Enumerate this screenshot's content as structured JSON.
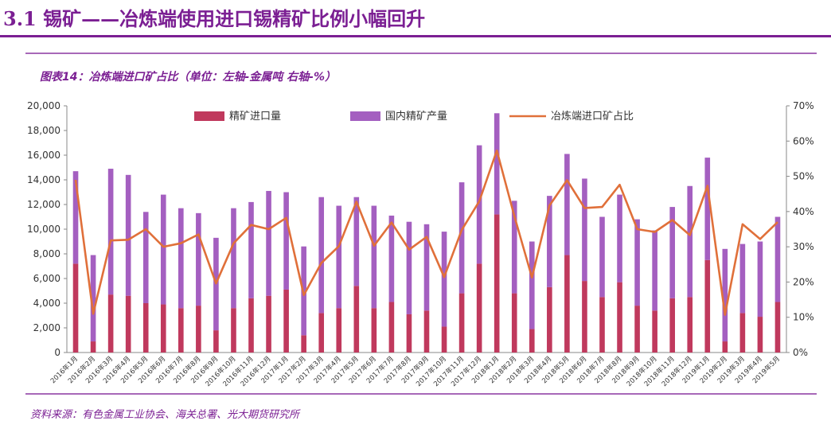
{
  "header": {
    "title": "3.1 锡矿——冶炼端使用进口锡精矿比例小幅回升",
    "figure_title": "图表14：冶炼端进口矿占比（单位：左轴-金属吨 右轴-%）"
  },
  "footer": {
    "source": "资料来源：有色金属工业协会、海关总署、光大期货研究所"
  },
  "colors": {
    "accent": "#7b1f93",
    "import": "#c0395d",
    "domestic": "#a45fc0",
    "ratio": "#e0703a"
  },
  "chart_data": {
    "type": "bar",
    "stacked": true,
    "categories": [
      "2016年1月",
      "2016年2月",
      "2016年3月",
      "2016年4月",
      "2016年5月",
      "2016年6月",
      "2016年7月",
      "2016年8月",
      "2016年9月",
      "2016年10月",
      "2016年11月",
      "2016年12月",
      "2017年1月",
      "2017年2月",
      "2017年3月",
      "2017年4月",
      "2017年5月",
      "2017年6月",
      "2017年7月",
      "2017年8月",
      "2017年9月",
      "2017年10月",
      "2017年11月",
      "2017年12月",
      "2018年1月",
      "2018年2月",
      "2018年3月",
      "2018年4月",
      "2018年5月",
      "2018年6月",
      "2018年7月",
      "2018年8月",
      "2018年9月",
      "2018年10月",
      "2018年11月",
      "2018年12月",
      "2019年1月",
      "2019年2月",
      "2019年3月",
      "2019年4月",
      "2019年5月"
    ],
    "series": [
      {
        "name": "精矿进口量",
        "axis": "left",
        "kind": "bar",
        "values": [
          7200,
          900,
          4700,
          4600,
          4000,
          3900,
          3600,
          3800,
          1800,
          3600,
          4400,
          4600,
          5100,
          1400,
          3200,
          3600,
          5400,
          3600,
          4100,
          3100,
          3400,
          2100,
          4800,
          7200,
          11200,
          4800,
          1900,
          5300,
          7900,
          5800,
          4500,
          5700,
          3800,
          3400,
          4400,
          4500,
          7500,
          900,
          3200,
          2900,
          4100
        ]
      },
      {
        "name": "国内精矿产量",
        "axis": "left",
        "kind": "bar",
        "values": [
          7500,
          7000,
          10200,
          9800,
          7400,
          8900,
          8100,
          7500,
          7500,
          8100,
          7800,
          8500,
          7900,
          7200,
          9400,
          8300,
          7200,
          8300,
          7000,
          7500,
          7000,
          7700,
          9000,
          9600,
          8200,
          7500,
          7100,
          7400,
          8200,
          8300,
          6500,
          7100,
          7000,
          6500,
          7400,
          9000,
          8300,
          7500,
          5600,
          6100,
          6900
        ]
      },
      {
        "name": "冶炼端进口矿占比",
        "axis": "right",
        "kind": "line",
        "unit": "%",
        "values": [
          49,
          11,
          31.8,
          32,
          35,
          30,
          31,
          33.5,
          19.6,
          31,
          36.2,
          35,
          38.2,
          16.3,
          25.4,
          30.2,
          42.8,
          30.3,
          36.9,
          29.2,
          32.8,
          21.4,
          34.8,
          42.9,
          57.3,
          38.7,
          21.3,
          41.7,
          48.9,
          41,
          41.3,
          47.6,
          35,
          34.2,
          37.6,
          33.3,
          47.3,
          10.7,
          36.4,
          32.2,
          37
        ]
      }
    ],
    "y_left": {
      "min": 0,
      "max": 20000,
      "ticks": [
        "0",
        "2,000",
        "4,000",
        "6,000",
        "8,000",
        "10,000",
        "12,000",
        "14,000",
        "16,000",
        "18,000",
        "20,000"
      ]
    },
    "y_right": {
      "min": 0,
      "max": 70,
      "ticks": [
        "0%",
        "10%",
        "20%",
        "30%",
        "40%",
        "50%",
        "60%",
        "70%"
      ]
    },
    "legend_position": "top"
  }
}
